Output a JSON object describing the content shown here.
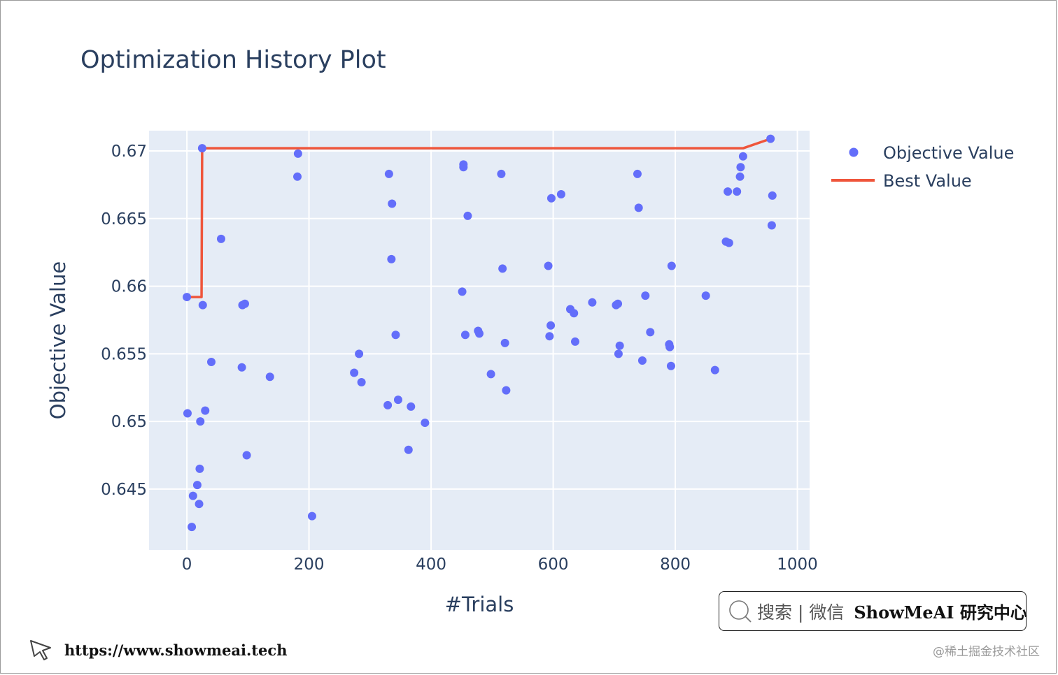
{
  "chart_data": {
    "type": "scatter",
    "title": "Optimization History Plot",
    "xlabel": "#Trials",
    "ylabel": "Objective Value",
    "xlim": [
      -62,
      1020
    ],
    "ylim": [
      0.6405,
      0.6715
    ],
    "xticks": [
      0,
      200,
      400,
      600,
      800,
      1000
    ],
    "xtick_labels": [
      "0",
      "200",
      "400",
      "600",
      "800",
      "1000"
    ],
    "yticks": [
      0.645,
      0.65,
      0.655,
      0.66,
      0.665,
      0.67
    ],
    "ytick_labels": [
      "0.645",
      "0.65",
      "0.655",
      "0.66",
      "0.665",
      "0.67"
    ],
    "grid": true,
    "legend_position": "right-top",
    "colors": {
      "objective": "#636efa",
      "best": "#ef553b",
      "plot_bg": "#e5ecf6",
      "grid": "#ffffff",
      "text": "#2a3f5f"
    },
    "series": [
      {
        "name": "Objective Value",
        "kind": "markers",
        "points": [
          [
            0,
            0.6592
          ],
          [
            1,
            0.6506
          ],
          [
            8,
            0.6422
          ],
          [
            10,
            0.6445
          ],
          [
            17,
            0.6453
          ],
          [
            20,
            0.6439
          ],
          [
            21,
            0.6465
          ],
          [
            22,
            0.65
          ],
          [
            25,
            0.6702
          ],
          [
            26,
            0.6586
          ],
          [
            30,
            0.6508
          ],
          [
            40,
            0.6544
          ],
          [
            56,
            0.6635
          ],
          [
            90,
            0.654
          ],
          [
            91,
            0.6586
          ],
          [
            95,
            0.6587
          ],
          [
            98,
            0.6475
          ],
          [
            136,
            0.6533
          ],
          [
            181,
            0.6681
          ],
          [
            182,
            0.6698
          ],
          [
            205,
            0.643
          ],
          [
            274,
            0.6536
          ],
          [
            282,
            0.655
          ],
          [
            286,
            0.6529
          ],
          [
            329,
            0.6512
          ],
          [
            331,
            0.6683
          ],
          [
            335,
            0.662
          ],
          [
            336,
            0.6661
          ],
          [
            342,
            0.6564
          ],
          [
            346,
            0.6516
          ],
          [
            363,
            0.6479
          ],
          [
            367,
            0.6511
          ],
          [
            390,
            0.6499
          ],
          [
            451,
            0.6596
          ],
          [
            453,
            0.6688
          ],
          [
            453,
            0.669
          ],
          [
            456,
            0.6564
          ],
          [
            460,
            0.6652
          ],
          [
            477,
            0.6567
          ],
          [
            479,
            0.6565
          ],
          [
            498,
            0.6535
          ],
          [
            515,
            0.6683
          ],
          [
            517,
            0.6613
          ],
          [
            521,
            0.6558
          ],
          [
            523,
            0.6523
          ],
          [
            592,
            0.6615
          ],
          [
            594,
            0.6563
          ],
          [
            596,
            0.6571
          ],
          [
            597,
            0.6665
          ],
          [
            613,
            0.6668
          ],
          [
            628,
            0.6583
          ],
          [
            634,
            0.658
          ],
          [
            636,
            0.6559
          ],
          [
            664,
            0.6588
          ],
          [
            703,
            0.6586
          ],
          [
            706,
            0.6587
          ],
          [
            707,
            0.655
          ],
          [
            709,
            0.6556
          ],
          [
            738,
            0.6683
          ],
          [
            740,
            0.6658
          ],
          [
            746,
            0.6545
          ],
          [
            751,
            0.6593
          ],
          [
            759,
            0.6566
          ],
          [
            790,
            0.6557
          ],
          [
            791,
            0.6555
          ],
          [
            793,
            0.6541
          ],
          [
            794,
            0.6615
          ],
          [
            850,
            0.6593
          ],
          [
            865,
            0.6538
          ],
          [
            883,
            0.6633
          ],
          [
            886,
            0.667
          ],
          [
            888,
            0.6632
          ],
          [
            901,
            0.667
          ],
          [
            906,
            0.6681
          ],
          [
            907,
            0.6688
          ],
          [
            911,
            0.6696
          ],
          [
            956,
            0.6709
          ],
          [
            958,
            0.6645
          ],
          [
            959,
            0.6667
          ]
        ]
      },
      {
        "name": "Best Value",
        "kind": "line",
        "points": [
          [
            0,
            0.6592
          ],
          [
            24,
            0.6592
          ],
          [
            25,
            0.6702
          ],
          [
            911,
            0.6702
          ],
          [
            956,
            0.6709
          ]
        ]
      }
    ]
  },
  "footer": {
    "search_text": "搜索 | 微信",
    "brand": "ShowMeAI 研究中心",
    "url": "https://www.showmeai.tech",
    "watermark": "@稀土掘金技术社区"
  }
}
